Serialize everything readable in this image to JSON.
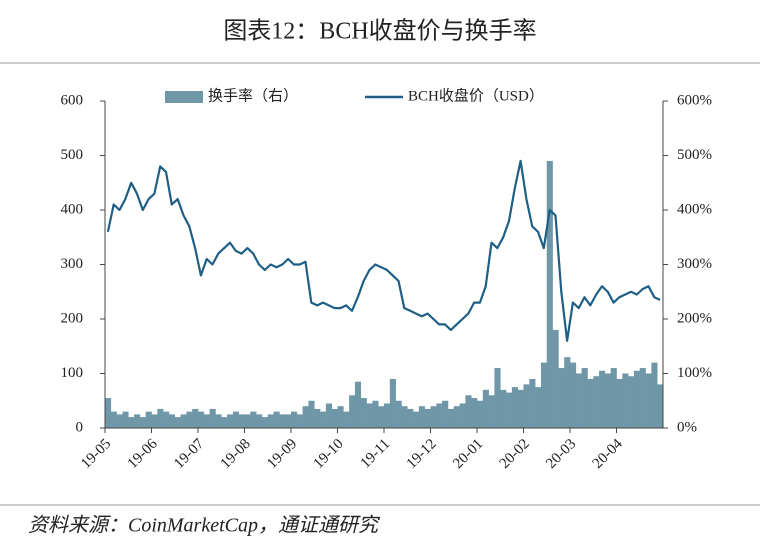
{
  "chart_data": {
    "type": "bar-line",
    "title": "图表12：BCH收盘价与换手率",
    "source": "资料来源：CoinMarketCap，通证通研究",
    "categories": [
      "19-05",
      null,
      null,
      null,
      null,
      null,
      null,
      null,
      "19-06",
      null,
      null,
      null,
      null,
      null,
      null,
      null,
      "19-07",
      null,
      null,
      null,
      null,
      null,
      null,
      null,
      "19-08",
      null,
      null,
      null,
      null,
      null,
      null,
      null,
      "19-09",
      null,
      null,
      null,
      null,
      null,
      null,
      null,
      "19-10",
      null,
      null,
      null,
      null,
      null,
      null,
      null,
      "19-11",
      null,
      null,
      null,
      null,
      null,
      null,
      null,
      "19-12",
      null,
      null,
      null,
      null,
      null,
      null,
      null,
      "20-01",
      null,
      null,
      null,
      null,
      null,
      null,
      null,
      "20-02",
      null,
      null,
      null,
      null,
      null,
      null,
      null,
      "20-03",
      null,
      null,
      null,
      null,
      null,
      null,
      null,
      "20-04",
      null,
      null,
      null,
      null,
      null,
      null,
      null
    ],
    "series": [
      {
        "name": "换手率（右）",
        "kind": "bar",
        "axis": "y2",
        "color": "#6f97a8",
        "values": [
          55,
          30,
          25,
          30,
          20,
          25,
          20,
          30,
          25,
          35,
          30,
          25,
          20,
          25,
          30,
          35,
          30,
          25,
          35,
          25,
          20,
          25,
          30,
          25,
          25,
          30,
          25,
          20,
          25,
          30,
          25,
          25,
          30,
          25,
          40,
          50,
          35,
          30,
          45,
          35,
          40,
          30,
          60,
          85,
          55,
          45,
          50,
          40,
          45,
          90,
          50,
          40,
          35,
          30,
          40,
          35,
          40,
          45,
          50,
          35,
          40,
          45,
          60,
          55,
          50,
          70,
          60,
          110,
          70,
          65,
          75,
          70,
          80,
          90,
          75,
          120,
          490,
          180,
          110,
          130,
          120,
          100,
          110,
          90,
          95,
          105,
          100,
          110,
          90,
          100,
          95,
          105,
          110,
          100,
          120,
          80
        ]
      },
      {
        "name": "BCH收盘价（USD）",
        "kind": "line",
        "axis": "y",
        "color": "#1f5f85",
        "values": [
          360,
          410,
          400,
          420,
          450,
          430,
          400,
          420,
          430,
          480,
          470,
          410,
          420,
          390,
          370,
          330,
          280,
          310,
          300,
          320,
          330,
          340,
          325,
          320,
          330,
          320,
          300,
          290,
          300,
          295,
          300,
          310,
          300,
          300,
          305,
          230,
          225,
          230,
          225,
          220,
          220,
          225,
          215,
          240,
          270,
          290,
          300,
          295,
          290,
          280,
          270,
          220,
          215,
          210,
          205,
          210,
          200,
          190,
          190,
          180,
          190,
          200,
          210,
          230,
          230,
          260,
          340,
          330,
          350,
          380,
          440,
          490,
          420,
          370,
          360,
          330,
          400,
          390,
          250,
          160,
          230,
          220,
          240,
          225,
          245,
          260,
          250,
          230,
          240,
          245,
          250,
          245,
          255,
          260,
          240,
          235
        ]
      }
    ],
    "ylim": [
      0,
      600
    ],
    "yticks": [
      0,
      100,
      200,
      300,
      400,
      500,
      600
    ],
    "y2lim": [
      0,
      600
    ],
    "y2ticks": [
      {
        "value": 0,
        "label": "0%"
      },
      {
        "value": 100,
        "label": "100%"
      },
      {
        "value": 200,
        "label": "200%"
      },
      {
        "value": 300,
        "label": "300%"
      },
      {
        "value": 400,
        "label": "400%"
      },
      {
        "value": 500,
        "label": "500%"
      },
      {
        "value": 600,
        "label": "600%"
      }
    ]
  }
}
